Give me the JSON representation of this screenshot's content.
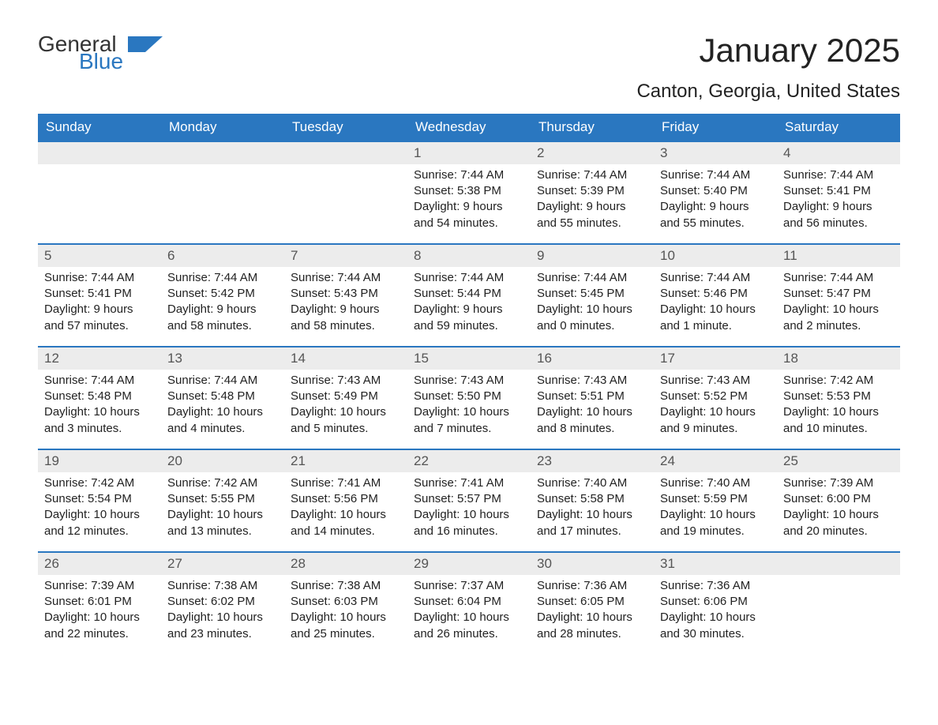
{
  "brand": {
    "general": "General",
    "blue": "Blue",
    "accent_color": "#2a77c0"
  },
  "title": "January 2025",
  "location": "Canton, Georgia, United States",
  "weekdays": [
    "Sunday",
    "Monday",
    "Tuesday",
    "Wednesday",
    "Thursday",
    "Friday",
    "Saturday"
  ],
  "colors": {
    "header_bg": "#2a77c0",
    "header_text": "#ffffff",
    "band_bg": "#ececec",
    "week_divider": "#2a77c0",
    "text": "#222222"
  },
  "weeks": [
    [
      null,
      null,
      null,
      {
        "day": "1",
        "sunrise": "Sunrise: 7:44 AM",
        "sunset": "Sunset: 5:38 PM",
        "daylight1": "Daylight: 9 hours",
        "daylight2": "and 54 minutes."
      },
      {
        "day": "2",
        "sunrise": "Sunrise: 7:44 AM",
        "sunset": "Sunset: 5:39 PM",
        "daylight1": "Daylight: 9 hours",
        "daylight2": "and 55 minutes."
      },
      {
        "day": "3",
        "sunrise": "Sunrise: 7:44 AM",
        "sunset": "Sunset: 5:40 PM",
        "daylight1": "Daylight: 9 hours",
        "daylight2": "and 55 minutes."
      },
      {
        "day": "4",
        "sunrise": "Sunrise: 7:44 AM",
        "sunset": "Sunset: 5:41 PM",
        "daylight1": "Daylight: 9 hours",
        "daylight2": "and 56 minutes."
      }
    ],
    [
      {
        "day": "5",
        "sunrise": "Sunrise: 7:44 AM",
        "sunset": "Sunset: 5:41 PM",
        "daylight1": "Daylight: 9 hours",
        "daylight2": "and 57 minutes."
      },
      {
        "day": "6",
        "sunrise": "Sunrise: 7:44 AM",
        "sunset": "Sunset: 5:42 PM",
        "daylight1": "Daylight: 9 hours",
        "daylight2": "and 58 minutes."
      },
      {
        "day": "7",
        "sunrise": "Sunrise: 7:44 AM",
        "sunset": "Sunset: 5:43 PM",
        "daylight1": "Daylight: 9 hours",
        "daylight2": "and 58 minutes."
      },
      {
        "day": "8",
        "sunrise": "Sunrise: 7:44 AM",
        "sunset": "Sunset: 5:44 PM",
        "daylight1": "Daylight: 9 hours",
        "daylight2": "and 59 minutes."
      },
      {
        "day": "9",
        "sunrise": "Sunrise: 7:44 AM",
        "sunset": "Sunset: 5:45 PM",
        "daylight1": "Daylight: 10 hours",
        "daylight2": "and 0 minutes."
      },
      {
        "day": "10",
        "sunrise": "Sunrise: 7:44 AM",
        "sunset": "Sunset: 5:46 PM",
        "daylight1": "Daylight: 10 hours",
        "daylight2": "and 1 minute."
      },
      {
        "day": "11",
        "sunrise": "Sunrise: 7:44 AM",
        "sunset": "Sunset: 5:47 PM",
        "daylight1": "Daylight: 10 hours",
        "daylight2": "and 2 minutes."
      }
    ],
    [
      {
        "day": "12",
        "sunrise": "Sunrise: 7:44 AM",
        "sunset": "Sunset: 5:48 PM",
        "daylight1": "Daylight: 10 hours",
        "daylight2": "and 3 minutes."
      },
      {
        "day": "13",
        "sunrise": "Sunrise: 7:44 AM",
        "sunset": "Sunset: 5:48 PM",
        "daylight1": "Daylight: 10 hours",
        "daylight2": "and 4 minutes."
      },
      {
        "day": "14",
        "sunrise": "Sunrise: 7:43 AM",
        "sunset": "Sunset: 5:49 PM",
        "daylight1": "Daylight: 10 hours",
        "daylight2": "and 5 minutes."
      },
      {
        "day": "15",
        "sunrise": "Sunrise: 7:43 AM",
        "sunset": "Sunset: 5:50 PM",
        "daylight1": "Daylight: 10 hours",
        "daylight2": "and 7 minutes."
      },
      {
        "day": "16",
        "sunrise": "Sunrise: 7:43 AM",
        "sunset": "Sunset: 5:51 PM",
        "daylight1": "Daylight: 10 hours",
        "daylight2": "and 8 minutes."
      },
      {
        "day": "17",
        "sunrise": "Sunrise: 7:43 AM",
        "sunset": "Sunset: 5:52 PM",
        "daylight1": "Daylight: 10 hours",
        "daylight2": "and 9 minutes."
      },
      {
        "day": "18",
        "sunrise": "Sunrise: 7:42 AM",
        "sunset": "Sunset: 5:53 PM",
        "daylight1": "Daylight: 10 hours",
        "daylight2": "and 10 minutes."
      }
    ],
    [
      {
        "day": "19",
        "sunrise": "Sunrise: 7:42 AM",
        "sunset": "Sunset: 5:54 PM",
        "daylight1": "Daylight: 10 hours",
        "daylight2": "and 12 minutes."
      },
      {
        "day": "20",
        "sunrise": "Sunrise: 7:42 AM",
        "sunset": "Sunset: 5:55 PM",
        "daylight1": "Daylight: 10 hours",
        "daylight2": "and 13 minutes."
      },
      {
        "day": "21",
        "sunrise": "Sunrise: 7:41 AM",
        "sunset": "Sunset: 5:56 PM",
        "daylight1": "Daylight: 10 hours",
        "daylight2": "and 14 minutes."
      },
      {
        "day": "22",
        "sunrise": "Sunrise: 7:41 AM",
        "sunset": "Sunset: 5:57 PM",
        "daylight1": "Daylight: 10 hours",
        "daylight2": "and 16 minutes."
      },
      {
        "day": "23",
        "sunrise": "Sunrise: 7:40 AM",
        "sunset": "Sunset: 5:58 PM",
        "daylight1": "Daylight: 10 hours",
        "daylight2": "and 17 minutes."
      },
      {
        "day": "24",
        "sunrise": "Sunrise: 7:40 AM",
        "sunset": "Sunset: 5:59 PM",
        "daylight1": "Daylight: 10 hours",
        "daylight2": "and 19 minutes."
      },
      {
        "day": "25",
        "sunrise": "Sunrise: 7:39 AM",
        "sunset": "Sunset: 6:00 PM",
        "daylight1": "Daylight: 10 hours",
        "daylight2": "and 20 minutes."
      }
    ],
    [
      {
        "day": "26",
        "sunrise": "Sunrise: 7:39 AM",
        "sunset": "Sunset: 6:01 PM",
        "daylight1": "Daylight: 10 hours",
        "daylight2": "and 22 minutes."
      },
      {
        "day": "27",
        "sunrise": "Sunrise: 7:38 AM",
        "sunset": "Sunset: 6:02 PM",
        "daylight1": "Daylight: 10 hours",
        "daylight2": "and 23 minutes."
      },
      {
        "day": "28",
        "sunrise": "Sunrise: 7:38 AM",
        "sunset": "Sunset: 6:03 PM",
        "daylight1": "Daylight: 10 hours",
        "daylight2": "and 25 minutes."
      },
      {
        "day": "29",
        "sunrise": "Sunrise: 7:37 AM",
        "sunset": "Sunset: 6:04 PM",
        "daylight1": "Daylight: 10 hours",
        "daylight2": "and 26 minutes."
      },
      {
        "day": "30",
        "sunrise": "Sunrise: 7:36 AM",
        "sunset": "Sunset: 6:05 PM",
        "daylight1": "Daylight: 10 hours",
        "daylight2": "and 28 minutes."
      },
      {
        "day": "31",
        "sunrise": "Sunrise: 7:36 AM",
        "sunset": "Sunset: 6:06 PM",
        "daylight1": "Daylight: 10 hours",
        "daylight2": "and 30 minutes."
      },
      null
    ]
  ]
}
